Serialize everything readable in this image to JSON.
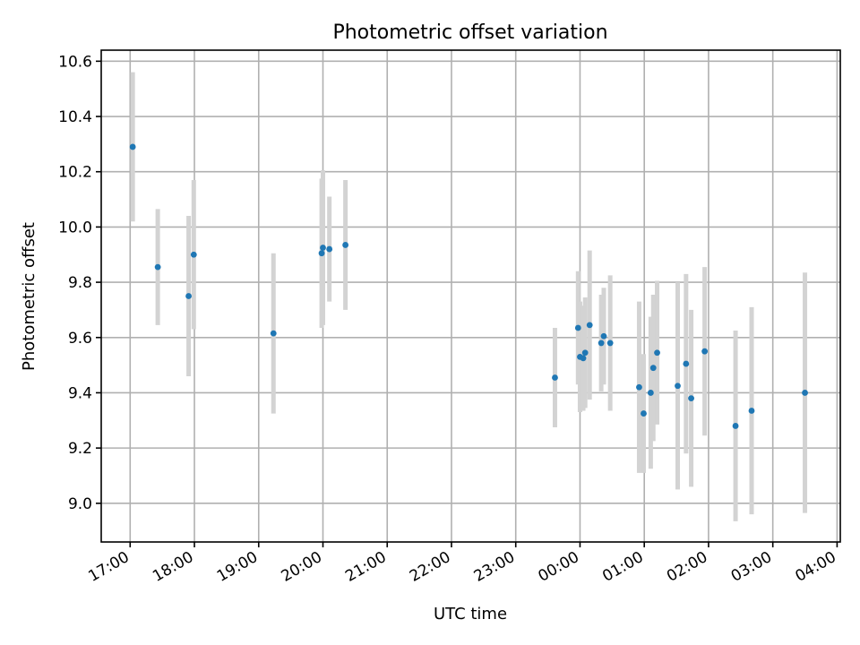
{
  "chart_data": {
    "type": "scatter",
    "title": "Photometric offset variation",
    "xlabel": "UTC time",
    "ylabel": "Photometric offset",
    "x_unit": "hours since 00:00 of first day",
    "xlim": [
      16.55,
      28.05
    ],
    "ylim": [
      8.86,
      10.64
    ],
    "grid": true,
    "error_bar_color": "#d3d3d3",
    "marker_color": "#1f77b4",
    "x_ticks": [
      {
        "value": 17,
        "label": "17:00"
      },
      {
        "value": 18,
        "label": "18:00"
      },
      {
        "value": 19,
        "label": "19:00"
      },
      {
        "value": 20,
        "label": "20:00"
      },
      {
        "value": 21,
        "label": "21:00"
      },
      {
        "value": 22,
        "label": "22:00"
      },
      {
        "value": 23,
        "label": "23:00"
      },
      {
        "value": 24,
        "label": "00:00"
      },
      {
        "value": 25,
        "label": "01:00"
      },
      {
        "value": 26,
        "label": "02:00"
      },
      {
        "value": 27,
        "label": "03:00"
      },
      {
        "value": 28,
        "label": "04:00"
      }
    ],
    "y_ticks": [
      {
        "value": 9.0,
        "label": "9.0"
      },
      {
        "value": 9.2,
        "label": "9.2"
      },
      {
        "value": 9.4,
        "label": "9.4"
      },
      {
        "value": 9.6,
        "label": "9.6"
      },
      {
        "value": 9.8,
        "label": "9.8"
      },
      {
        "value": 10.0,
        "label": "10.0"
      },
      {
        "value": 10.2,
        "label": "10.2"
      },
      {
        "value": 10.4,
        "label": "10.4"
      },
      {
        "value": 10.6,
        "label": "10.6"
      }
    ],
    "points": [
      {
        "x": 17.04,
        "y": 10.29,
        "err": 0.27
      },
      {
        "x": 17.43,
        "y": 9.855,
        "err": 0.21
      },
      {
        "x": 17.91,
        "y": 9.75,
        "err": 0.29
      },
      {
        "x": 17.99,
        "y": 9.9,
        "err": 0.27
      },
      {
        "x": 19.23,
        "y": 9.615,
        "err": 0.29
      },
      {
        "x": 19.98,
        "y": 9.905,
        "err": 0.27
      },
      {
        "x": 20.0,
        "y": 9.925,
        "err": 0.28
      },
      {
        "x": 20.1,
        "y": 9.92,
        "err": 0.19
      },
      {
        "x": 20.35,
        "y": 9.935,
        "err": 0.235
      },
      {
        "x": 23.61,
        "y": 9.455,
        "err": 0.18
      },
      {
        "x": 23.97,
        "y": 9.635,
        "err": 0.205
      },
      {
        "x": 24.0,
        "y": 9.53,
        "err": 0.2
      },
      {
        "x": 24.05,
        "y": 9.525,
        "err": 0.19
      },
      {
        "x": 24.08,
        "y": 9.545,
        "err": 0.2
      },
      {
        "x": 24.15,
        "y": 9.645,
        "err": 0.27
      },
      {
        "x": 24.33,
        "y": 9.58,
        "err": 0.175
      },
      {
        "x": 24.37,
        "y": 9.605,
        "err": 0.175
      },
      {
        "x": 24.47,
        "y": 9.58,
        "err": 0.245
      },
      {
        "x": 24.92,
        "y": 9.42,
        "err": 0.31
      },
      {
        "x": 24.99,
        "y": 9.325,
        "err": 0.215
      },
      {
        "x": 25.1,
        "y": 9.4,
        "err": 0.275
      },
      {
        "x": 25.14,
        "y": 9.49,
        "err": 0.265
      },
      {
        "x": 25.2,
        "y": 9.545,
        "err": 0.26
      },
      {
        "x": 25.52,
        "y": 9.425,
        "err": 0.375
      },
      {
        "x": 25.65,
        "y": 9.505,
        "err": 0.325
      },
      {
        "x": 25.73,
        "y": 9.38,
        "err": 0.32
      },
      {
        "x": 25.94,
        "y": 9.55,
        "err": 0.305
      },
      {
        "x": 26.42,
        "y": 9.28,
        "err": 0.345
      },
      {
        "x": 26.67,
        "y": 9.335,
        "err": 0.375
      },
      {
        "x": 27.5,
        "y": 9.4,
        "err": 0.435
      }
    ]
  }
}
